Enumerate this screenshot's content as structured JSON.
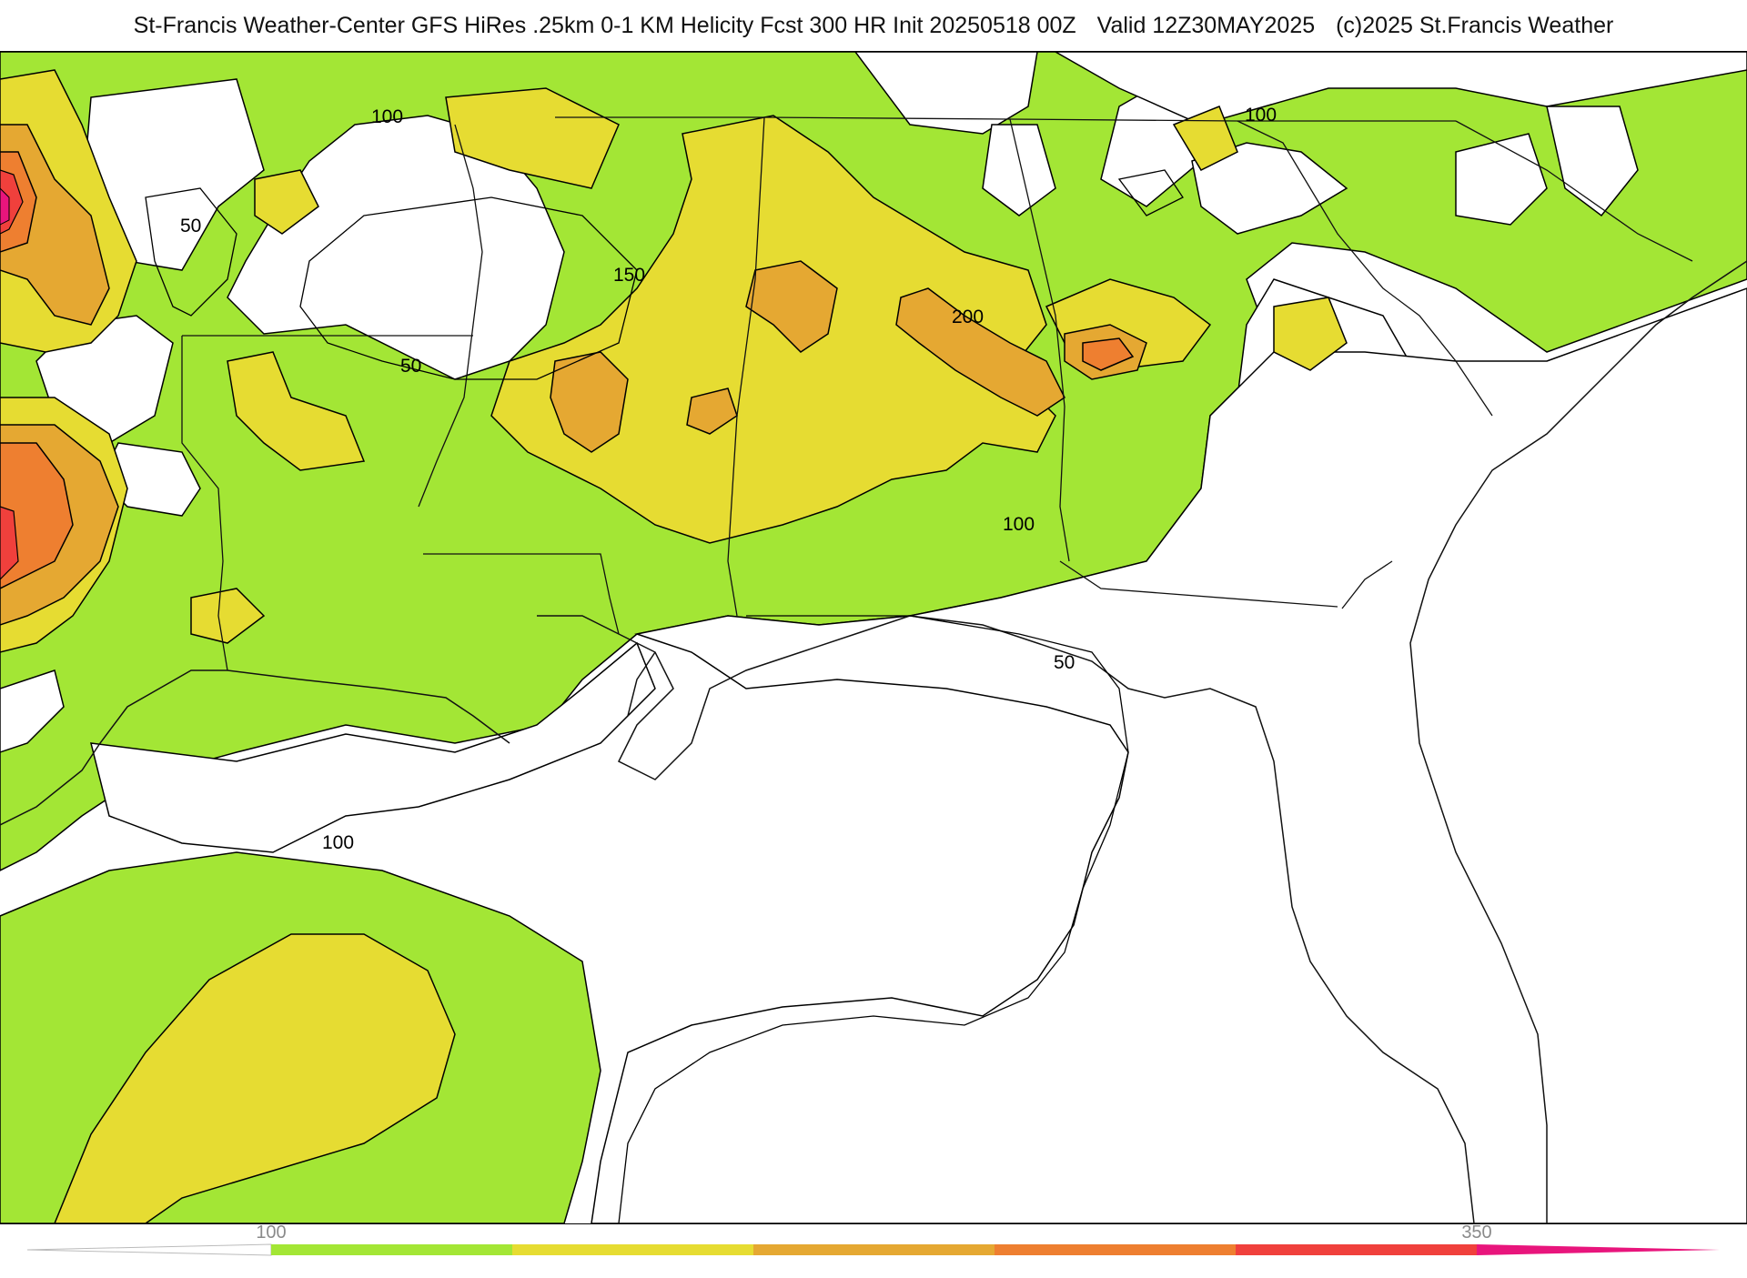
{
  "header": {
    "source": "St-Francis Weather-Center GFS HiRes .25km 0-1 KM Helicity Fcst 300 HR Init 20250518 00Z",
    "valid": "Valid 12Z30MAY2025",
    "copyright": "(c)2025 St.Francis Weather"
  },
  "map": {
    "region": "Southeastern United States and Gulf of Mexico",
    "contour_labels": [
      "100",
      "50",
      "100",
      "150",
      "50",
      "200",
      "100",
      "50",
      "100"
    ]
  },
  "colorbar": {
    "tick_labels": [
      "100",
      "350"
    ],
    "colors": {
      "lt100": "#ffffff",
      "100-150": "#a3e635",
      "150-200": "#e6dc32",
      "200-250": "#e5a832",
      "250-300": "#ee7f30",
      "300-350": "#f0403c",
      "gt350": "#e8157c"
    }
  }
}
